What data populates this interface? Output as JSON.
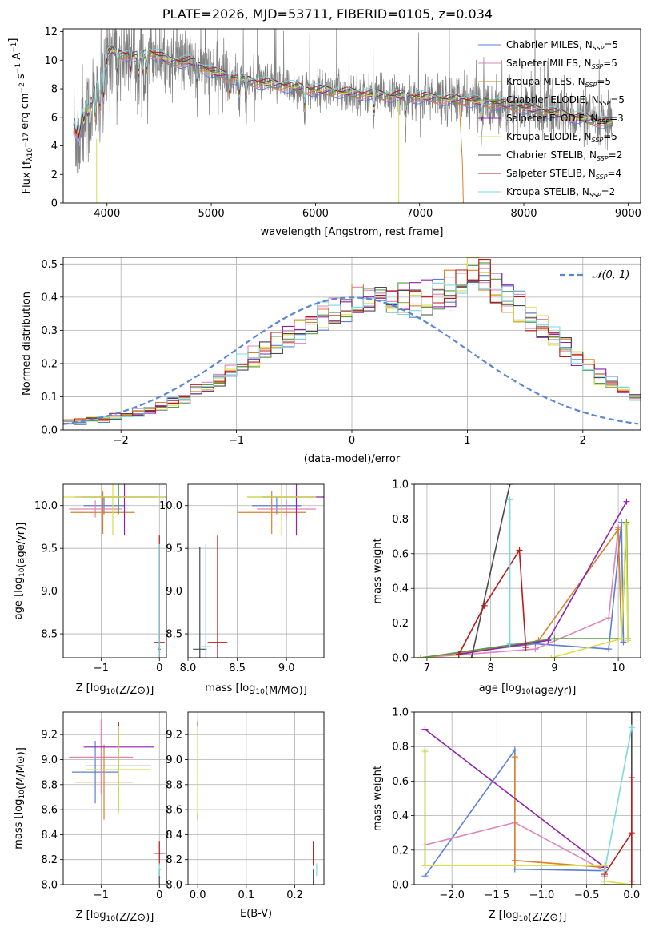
{
  "figure": {
    "title": "PLATE=2026, MJD=53711, FIBERID=0105, z=0.034"
  },
  "colors": {
    "Chabrier MILES": "#5b7fd6",
    "Salpeter MILES": "#e184b8",
    "Kroupa MILES": "#d9822b",
    "Chabrier ELODIE": "#5a9a4a",
    "Salpeter ELODIE": "#8e24aa",
    "Kroupa ELODIE": "#d8e04a",
    "Chabrier STELIB": "#4a4a4a",
    "Salpeter STELIB": "#b71c1c",
    "Kroupa STELIB": "#7dd8e0",
    "data": "#808080",
    "normal": "#5b86d6"
  },
  "chart_data": [
    {
      "id": "spectrum",
      "type": "line",
      "xlabel": "wavelength [Angstrom, rest frame]",
      "ylabel": "Flux [f_λ10^-17 erg cm^-2 s^-1 A^-1]",
      "xlim": [
        3580,
        9120
      ],
      "ylim": [
        0,
        12.2
      ],
      "xticks": [
        4000,
        5000,
        6000,
        7000,
        8000,
        9000
      ],
      "yticks": [
        0,
        2,
        4,
        6,
        8,
        10,
        12
      ],
      "grid": false,
      "legend_position": "top-right",
      "legend": [
        {
          "label": "Chabrier MILES, N_SSP=5",
          "model": "Chabrier MILES"
        },
        {
          "label": "Salpeter MILES, N_SSP=5",
          "model": "Salpeter MILES"
        },
        {
          "label": "Kroupa MILES, N_SSP=5",
          "model": "Kroupa MILES"
        },
        {
          "label": "Chabrier ELODIE, N_SSP=5",
          "model": "Chabrier ELODIE"
        },
        {
          "label": "Salpeter ELODIE, N_SSP=3",
          "model": "Salpeter ELODIE"
        },
        {
          "label": "Kroupa ELODIE, N_SSP=5",
          "model": "Kroupa ELODIE"
        },
        {
          "label": "Chabrier STELIB, N_SSP=2",
          "model": "Chabrier STELIB"
        },
        {
          "label": "Salpeter STELIB, N_SSP=4",
          "model": "Salpeter STELIB"
        },
        {
          "label": "Kroupa STELIB, N_SSP=2",
          "model": "Kroupa STELIB"
        }
      ],
      "continuum_points": [
        [
          3680,
          5.5
        ],
        [
          3750,
          6.0
        ],
        [
          3800,
          6.8
        ],
        [
          3850,
          7.8
        ],
        [
          3900,
          8.3
        ],
        [
          3950,
          9.0
        ],
        [
          4000,
          10.3
        ],
        [
          4050,
          10.7
        ],
        [
          4100,
          10.4
        ],
        [
          4200,
          10.4
        ],
        [
          4300,
          10.2
        ],
        [
          4400,
          10.6
        ],
        [
          4500,
          10.3
        ],
        [
          4600,
          9.9
        ],
        [
          4800,
          9.9
        ],
        [
          5000,
          9.2
        ],
        [
          5200,
          8.8
        ],
        [
          5400,
          8.5
        ],
        [
          5600,
          8.3
        ],
        [
          5800,
          8.1
        ],
        [
          6000,
          7.9
        ],
        [
          6200,
          7.8
        ],
        [
          6500,
          7.6
        ],
        [
          7000,
          7.4
        ],
        [
          7400,
          7.2
        ],
        [
          7800,
          6.9
        ],
        [
          8200,
          6.4
        ],
        [
          8500,
          6.0
        ],
        [
          8800,
          5.6
        ]
      ]
    },
    {
      "id": "residuals",
      "type": "histogram",
      "xlabel": "(data-model)/error",
      "ylabel": "Normed distribution",
      "xlim": [
        -2.5,
        2.5
      ],
      "ylim": [
        0,
        0.52
      ],
      "xticks": [
        -2,
        -1,
        0,
        1,
        2
      ],
      "yticks": [
        0.0,
        0.1,
        0.2,
        0.3,
        0.4,
        0.5
      ],
      "grid": true,
      "legend_position": "top-right",
      "legend": [
        {
          "label": "N(0,1)"
        }
      ],
      "bin_width": 0.1,
      "bins_center": [
        0.022,
        0.027,
        0.032,
        0.032,
        0.038,
        0.045,
        0.052,
        0.062,
        0.072,
        0.085,
        0.098,
        0.118,
        0.138,
        0.158,
        0.178,
        0.2,
        0.222,
        0.24,
        0.258,
        0.28,
        0.3,
        0.32,
        0.34,
        0.355,
        0.37,
        0.385,
        0.395,
        0.4,
        0.405,
        0.4,
        0.395,
        0.4,
        0.41,
        0.43,
        0.45,
        0.47,
        0.46,
        0.43,
        0.4,
        0.37,
        0.34,
        0.31,
        0.28,
        0.25,
        0.22,
        0.19,
        0.16,
        0.14,
        0.12,
        0.1,
        0.085,
        0.075,
        0.065,
        0.06,
        0.05,
        0.045,
        0.04,
        0.035,
        0.03,
        0.03,
        0.025,
        0.025,
        0.022,
        0.025,
        0.025,
        0.02,
        0.025,
        0.022,
        0.02,
        0.02,
        0.018,
        0.018,
        0.015,
        0.015,
        0.015,
        0.012,
        0.012,
        0.01,
        0.01,
        0.01,
        0.01,
        0.01,
        0.01,
        0.01,
        0.01,
        0.01,
        0.01,
        0.01,
        0.01,
        0.01,
        0.01,
        0.01,
        0.01,
        0.01,
        0.01,
        0.01,
        0.01,
        0.01,
        0.01,
        0.01
      ]
    },
    {
      "id": "age-vs-Z",
      "type": "errorbar",
      "xlabel": "Z [log10(Z/Z⊙)]",
      "ylabel": "age [log10(age/yr)]",
      "xlim": [
        -1.65,
        0.12
      ],
      "ylim": [
        8.22,
        10.25
      ],
      "xticks": [
        -1,
        0
      ],
      "yticks": [
        8.5,
        9.0,
        9.5,
        10.0
      ],
      "grid": true,
      "points": [
        {
          "model": "Chabrier MILES",
          "x": -0.95,
          "xerr": 0.35,
          "y": 10.0,
          "yerr": 0.1
        },
        {
          "model": "Salpeter MILES",
          "x": -1.1,
          "xerr": 0.45,
          "y": 9.96,
          "yerr": 0.1
        },
        {
          "model": "Kroupa MILES",
          "x": -0.97,
          "xerr": 0.55,
          "y": 9.92,
          "yerr": 0.25
        },
        {
          "model": "Chabrier ELODIE",
          "x": -0.7,
          "xerr": 0.65,
          "y": 10.1,
          "yerr": 0.2
        },
        {
          "model": "Salpeter ELODIE",
          "x": -0.6,
          "xerr": 0.85,
          "y": 10.1,
          "yerr": 0.45
        },
        {
          "model": "Kroupa ELODIE",
          "x": -0.8,
          "xerr": 0.9,
          "y": 10.1,
          "yerr": 0.45
        },
        {
          "model": "Chabrier STELIB",
          "x": 0.0,
          "xerr": 0.02,
          "y": 8.32,
          "yerr": 1.2
        },
        {
          "model": "Salpeter STELIB",
          "x": 0.0,
          "xerr": 0.09,
          "y": 8.4,
          "yerr": 1.25
        },
        {
          "model": "Kroupa STELIB",
          "x": 0.0,
          "xerr": 0.03,
          "y": 8.35,
          "yerr": 1.2
        }
      ]
    },
    {
      "id": "age-vs-mass",
      "type": "errorbar",
      "xlabel": "mass [log10(M/M⊙)]",
      "ylabel": "",
      "xlim": [
        8.0,
        9.38
      ],
      "ylim": [
        8.22,
        10.25
      ],
      "xticks": [
        8.0,
        8.5,
        9.0
      ],
      "yticks": [
        8.5,
        9.0,
        9.5,
        10.0
      ],
      "grid": true,
      "points": [
        {
          "model": "Chabrier MILES",
          "x": 8.9,
          "xerr": 0.25,
          "y": 10.0,
          "yerr": 0.1
        },
        {
          "model": "Salpeter MILES",
          "x": 9.0,
          "xerr": 0.3,
          "y": 9.96,
          "yerr": 0.1
        },
        {
          "model": "Kroupa MILES",
          "x": 8.85,
          "xerr": 0.35,
          "y": 9.92,
          "yerr": 0.25
        },
        {
          "model": "Chabrier ELODIE",
          "x": 8.95,
          "xerr": 0.35,
          "y": 10.1,
          "yerr": 0.2
        },
        {
          "model": "Salpeter ELODIE",
          "x": 9.1,
          "xerr": 0.35,
          "y": 10.1,
          "yerr": 0.45
        },
        {
          "model": "Kroupa ELODIE",
          "x": 8.95,
          "xerr": 0.35,
          "y": 10.1,
          "yerr": 0.45
        },
        {
          "model": "Chabrier STELIB",
          "x": 8.12,
          "xerr": 0.07,
          "y": 8.32,
          "yerr": 1.2
        },
        {
          "model": "Salpeter STELIB",
          "x": 8.3,
          "xerr": 0.1,
          "y": 8.4,
          "yerr": 1.25
        },
        {
          "model": "Kroupa STELIB",
          "x": 8.18,
          "xerr": 0.06,
          "y": 8.35,
          "yerr": 1.2
        }
      ]
    },
    {
      "id": "weight-vs-age",
      "type": "line",
      "xlabel": "age [log10(age/yr)]",
      "ylabel": "mass weight",
      "xlim": [
        6.8,
        10.35
      ],
      "ylim": [
        0,
        1.0
      ],
      "xticks": [
        7,
        8,
        9,
        10
      ],
      "yticks": [
        0.0,
        0.2,
        0.4,
        0.6,
        0.8,
        1.0
      ],
      "grid": true,
      "series": [
        {
          "model": "Chabrier MILES",
          "x": [
            6.9,
            8.7,
            9.85,
            10.05,
            10.08
          ],
          "y": [
            0.0,
            0.08,
            0.05,
            0.78,
            0.09
          ]
        },
        {
          "model": "Salpeter MILES",
          "x": [
            6.9,
            8.7,
            9.85,
            10.0
          ],
          "y": [
            0.0,
            0.05,
            0.23,
            0.75
          ]
        },
        {
          "model": "Kroupa MILES",
          "x": [
            6.9,
            8.6,
            8.75,
            10.0,
            10.05
          ],
          "y": [
            0.0,
            0.08,
            0.1,
            0.74,
            0.11
          ]
        },
        {
          "model": "Chabrier ELODIE",
          "x": [
            6.9,
            9.0,
            10.05,
            10.13,
            10.15
          ],
          "y": [
            0.0,
            0.11,
            0.11,
            0.78,
            0.11
          ]
        },
        {
          "model": "Salpeter ELODIE",
          "x": [
            7.5,
            8.9,
            10.13
          ],
          "y": [
            0.02,
            0.1,
            0.9
          ]
        },
        {
          "model": "Kroupa ELODIE",
          "x": [
            6.9,
            8.95,
            10.05,
            10.12,
            10.15
          ],
          "y": [
            0.0,
            0.0,
            0.11,
            0.77,
            0.1
          ]
        },
        {
          "model": "Chabrier STELIB",
          "x": [
            7.7,
            8.3
          ],
          "y": [
            0.0,
            1.0
          ]
        },
        {
          "model": "Salpeter STELIB",
          "x": [
            7.5,
            7.9,
            8.45,
            8.55
          ],
          "y": [
            0.02,
            0.3,
            0.62,
            0.06
          ]
        },
        {
          "model": "Kroupa STELIB",
          "x": [
            8.3,
            8.3
          ],
          "y": [
            0.08,
            0.91
          ]
        }
      ]
    },
    {
      "id": "mass-vs-Z",
      "type": "errorbar",
      "xlabel": "Z [log10(Z/Z⊙)]",
      "ylabel": "mass [log10(M/M⊙)]",
      "xlim": [
        -1.65,
        0.12
      ],
      "ylim": [
        8.0,
        9.38
      ],
      "xticks": [
        -1,
        0
      ],
      "yticks": [
        8.0,
        8.2,
        8.4,
        8.6,
        8.8,
        9.0,
        9.2
      ],
      "grid": true,
      "points": [
        {
          "model": "Chabrier MILES",
          "x": -1.1,
          "xerr": 0.4,
          "y": 8.9,
          "yerr": 0.25
        },
        {
          "model": "Salpeter MILES",
          "x": -1.0,
          "xerr": 0.55,
          "y": 9.02,
          "yerr": 0.3
        },
        {
          "model": "Kroupa MILES",
          "x": -0.95,
          "xerr": 0.5,
          "y": 8.82,
          "yerr": 0.3
        },
        {
          "model": "Chabrier ELODIE",
          "x": -0.7,
          "xerr": 0.55,
          "y": 8.95,
          "yerr": 0.35
        },
        {
          "model": "Salpeter ELODIE",
          "x": -0.7,
          "xerr": 0.6,
          "y": 9.1,
          "yerr": 0.2
        },
        {
          "model": "Kroupa ELODIE",
          "x": -0.7,
          "xerr": 0.55,
          "y": 8.92,
          "yerr": 0.35
        },
        {
          "model": "Chabrier STELIB",
          "x": 0.0,
          "xerr": 0.02,
          "y": 8.06,
          "yerr": 0.06
        },
        {
          "model": "Salpeter STELIB",
          "x": 0.0,
          "xerr": 0.1,
          "y": 8.25,
          "yerr": 0.1
        },
        {
          "model": "Kroupa STELIB",
          "x": 0.0,
          "xerr": 0.03,
          "y": 8.12,
          "yerr": 0.05
        }
      ]
    },
    {
      "id": "mass-vs-EBV",
      "type": "errorbar",
      "xlabel": "E(B-V)",
      "ylabel": "",
      "xlim": [
        -0.02,
        0.26
      ],
      "ylim": [
        8.0,
        9.38
      ],
      "xticks": [
        0.0,
        0.1,
        0.2
      ],
      "yticks": [
        8.0,
        8.2,
        8.4,
        8.6,
        8.8,
        9.0,
        9.2
      ],
      "grid": true,
      "points": [
        {
          "model": "Chabrier MILES",
          "x": 0.0,
          "xerr": 0.0,
          "y": 8.9,
          "yerr": 0.25
        },
        {
          "model": "Salpeter MILES",
          "x": 0.0,
          "xerr": 0.0,
          "y": 9.02,
          "yerr": 0.3
        },
        {
          "model": "Kroupa MILES",
          "x": 0.0,
          "xerr": 0.0,
          "y": 8.82,
          "yerr": 0.3
        },
        {
          "model": "Chabrier ELODIE",
          "x": 0.0,
          "xerr": 0.0,
          "y": 8.95,
          "yerr": 0.35
        },
        {
          "model": "Salpeter ELODIE",
          "x": 0.0,
          "xerr": 0.0,
          "y": 9.1,
          "yerr": 0.2
        },
        {
          "model": "Kroupa ELODIE",
          "x": 0.0,
          "xerr": 0.0,
          "y": 8.92,
          "yerr": 0.35
        },
        {
          "model": "Chabrier STELIB",
          "x": 0.238,
          "xerr": 0.0,
          "y": 8.06,
          "yerr": 0.06
        },
        {
          "model": "Salpeter STELIB",
          "x": 0.238,
          "xerr": 0.0,
          "y": 8.25,
          "yerr": 0.1
        },
        {
          "model": "Kroupa STELIB",
          "x": 0.245,
          "xerr": 0.0,
          "y": 8.12,
          "yerr": 0.05
        }
      ]
    },
    {
      "id": "weight-vs-Z",
      "type": "line",
      "xlabel": "Z [log10(Z/Z⊙)]",
      "ylabel": "mass weight",
      "xlim": [
        -2.42,
        0.1
      ],
      "ylim": [
        0,
        1.0
      ],
      "xticks": [
        -2.0,
        -1.5,
        -1.0,
        -0.5,
        0.0
      ],
      "yticks": [
        0.0,
        0.2,
        0.4,
        0.6,
        0.8,
        1.0
      ],
      "grid": true,
      "series": [
        {
          "model": "Chabrier MILES",
          "x": [
            -2.3,
            -1.3,
            -1.3,
            -0.3,
            -0.3
          ],
          "y": [
            0.05,
            0.78,
            0.09,
            0.08,
            0.08
          ]
        },
        {
          "model": "Salpeter MILES",
          "x": [
            -2.3,
            -1.3,
            -0.3,
            -0.3
          ],
          "y": [
            0.23,
            0.36,
            0.08,
            0.05
          ]
        },
        {
          "model": "Kroupa MILES",
          "x": [
            -1.3,
            -1.3,
            -1.3,
            -0.3,
            -0.3
          ],
          "y": [
            0.74,
            0.11,
            0.14,
            0.1,
            0.1
          ]
        },
        {
          "model": "Chabrier ELODIE",
          "x": [
            -2.3,
            -2.3,
            -0.3,
            -0.3,
            0.0
          ],
          "y": [
            0.78,
            0.11,
            0.11,
            0.0,
            0.0
          ]
        },
        {
          "model": "Salpeter ELODIE",
          "x": [
            -2.3,
            -0.3,
            -0.3
          ],
          "y": [
            0.9,
            0.1,
            0.02
          ]
        },
        {
          "model": "Kroupa ELODIE",
          "x": [
            -2.3,
            -2.3,
            -0.3,
            -0.3,
            0.0
          ],
          "y": [
            0.77,
            0.11,
            0.11,
            0.02,
            0.0
          ]
        },
        {
          "model": "Chabrier STELIB",
          "x": [
            0.0,
            0.0
          ],
          "y": [
            0.0,
            1.0
          ]
        },
        {
          "model": "Salpeter STELIB",
          "x": [
            -0.3,
            0.0,
            0.0,
            0.0
          ],
          "y": [
            0.06,
            0.3,
            0.62,
            0.02
          ]
        },
        {
          "model": "Kroupa STELIB",
          "x": [
            -0.3,
            0.0
          ],
          "y": [
            0.08,
            0.91
          ]
        }
      ]
    }
  ]
}
